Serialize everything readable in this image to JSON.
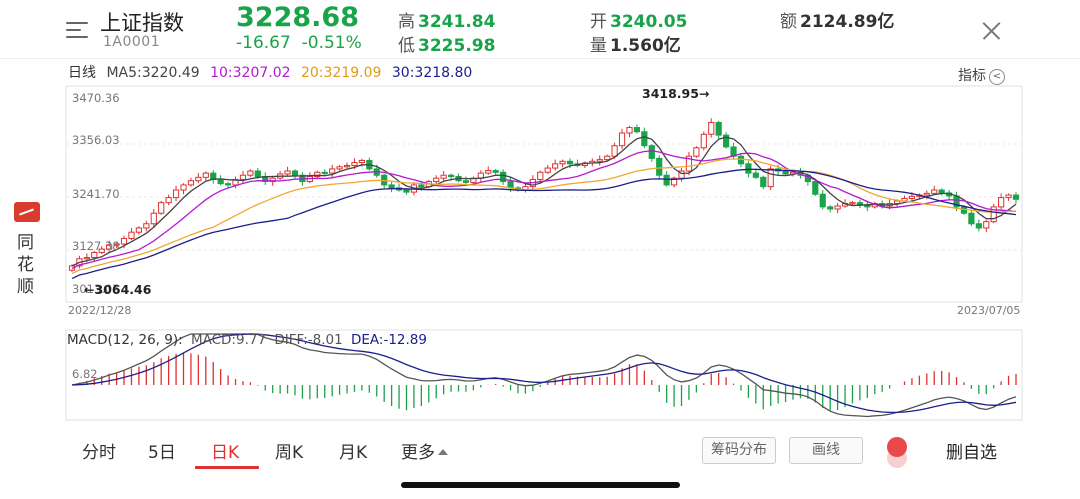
{
  "header": {
    "title": "上证指数",
    "code": "1A0001",
    "price": "3228.68",
    "change": "-16.67",
    "change_pct": "-0.51%",
    "high_label": "高",
    "high": "3241.84",
    "low_label": "低",
    "low": "3225.98",
    "open_label": "开",
    "open": "3240.05",
    "volume_label": "量",
    "volume": "1.560亿",
    "amount_label": "额",
    "amount": "2124.89亿"
  },
  "ma_legend": {
    "period_label": "日线",
    "ma5": "MA5:3220.49",
    "ma10": "10:3207.02",
    "ma20": "20:3219.09",
    "ma30": "30:3218.80"
  },
  "indicator_button": "指标",
  "price_axis": {
    "top": "3470.36",
    "mid1": "3356.03",
    "mid2": "3241.70",
    "mid3": "3127.38",
    "bottom": "3013.05"
  },
  "annotations": {
    "high_mark": "3418.95→",
    "low_mark": "←3064.46"
  },
  "date_axis": {
    "start": "2022/12/28",
    "end": "2023/07/05"
  },
  "macd": {
    "legend_name": "MACD(12, 26, 9):",
    "macd_value": "MACD:9.77",
    "diff_value": "DIFF:-8.01",
    "dea_value": "DEA:-12.89",
    "axis_top": "6.82"
  },
  "side_brand": "同花顺",
  "tabs": [
    "分时",
    "5日",
    "日K",
    "周K",
    "月K",
    "更多"
  ],
  "active_tab": "日K",
  "buttons": {
    "chip_distribution": "筹码分布",
    "draw_line": "画线",
    "remove_favorite": "删自选"
  },
  "colors": {
    "up": "#e0302f",
    "down": "#1aa34a",
    "ma5": "#444444",
    "ma10": "#b31bd1",
    "ma20": "#f0a830",
    "ma30": "#1c1e8c",
    "diff": "#555555",
    "dea": "#1c1e8c"
  },
  "chart_data": {
    "type": "candlestick",
    "price_range": [
      3013.05,
      3470.36
    ],
    "candles_close": [
      3070,
      3087,
      3090,
      3102,
      3110,
      3120,
      3122,
      3135,
      3150,
      3160,
      3170,
      3195,
      3220,
      3232,
      3250,
      3262,
      3272,
      3280,
      3290,
      3275,
      3265,
      3262,
      3275,
      3285,
      3295,
      3282,
      3270,
      3278,
      3288,
      3295,
      3285,
      3270,
      3282,
      3292,
      3290,
      3300,
      3305,
      3308,
      3315,
      3320,
      3300,
      3285,
      3262,
      3255,
      3250,
      3245,
      3262,
      3258,
      3270,
      3278,
      3285,
      3282,
      3272,
      3268,
      3278,
      3290,
      3296,
      3292,
      3270,
      3255,
      3250,
      3258,
      3275,
      3292,
      3302,
      3312,
      3318,
      3312,
      3308,
      3314,
      3318,
      3322,
      3330,
      3355,
      3385,
      3398,
      3388,
      3355,
      3325,
      3285,
      3262,
      3278,
      3295,
      3330,
      3350,
      3382,
      3410,
      3380,
      3352,
      3330,
      3312,
      3290,
      3280,
      3258,
      3300,
      3295,
      3288,
      3292,
      3285,
      3270,
      3240,
      3210,
      3205,
      3212,
      3218,
      3220,
      3215,
      3210,
      3218,
      3212,
      3218,
      3224,
      3230,
      3235,
      3238,
      3242,
      3250,
      3243,
      3236,
      3210,
      3195,
      3170,
      3160,
      3175,
      3210,
      3232,
      3238,
      3228
    ],
    "macd": {
      "axis_top": 6.82
    }
  }
}
